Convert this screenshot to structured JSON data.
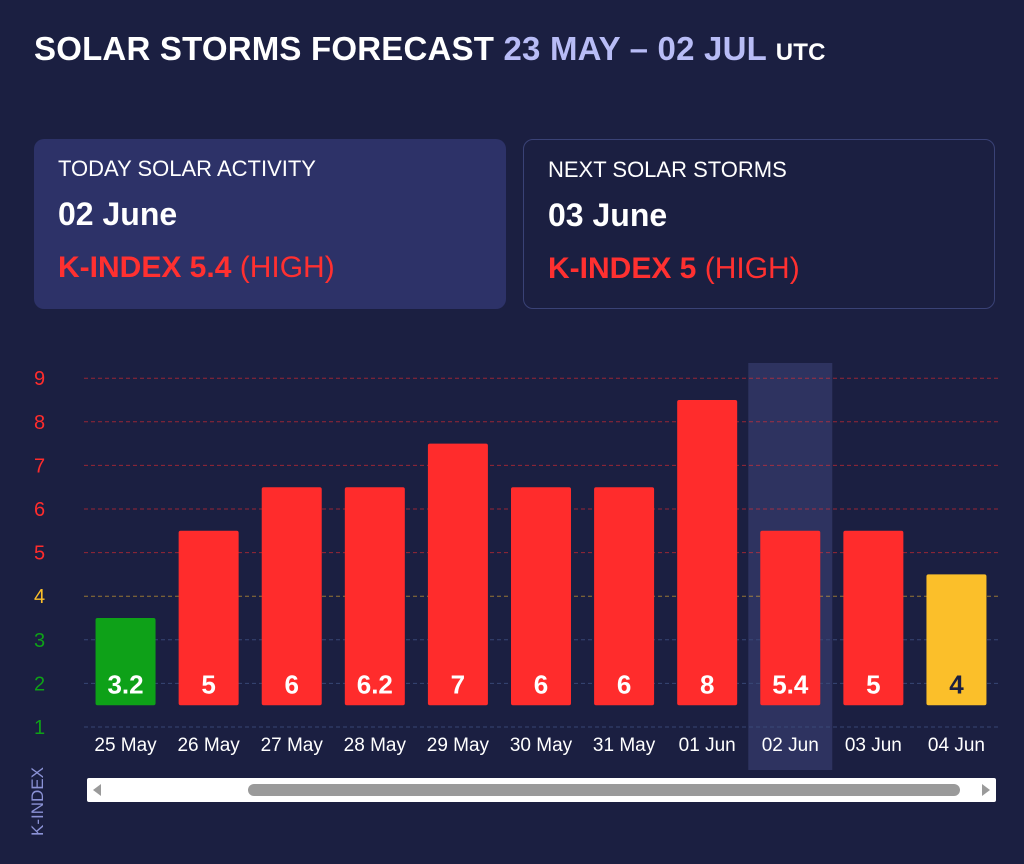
{
  "header": {
    "title": "SOLAR STORMS FORECAST",
    "range": "23 MAY – 02 JUL",
    "tz": "UTC"
  },
  "today": {
    "label": "TODAY SOLAR ACTIVITY",
    "date": "02 June",
    "kindex": "K-INDEX 5.4",
    "level": "(HIGH)"
  },
  "next": {
    "label": "NEXT SOLAR STORMS",
    "date": "03 June",
    "kindex": "K-INDEX 5",
    "level": "(HIGH)"
  },
  "colors": {
    "background": "#1b1f41",
    "high": "#ff2c2c",
    "moderate": "#fbbf2a",
    "low": "#0ea118",
    "range_text": "#b8bcf6"
  },
  "chart_data": {
    "type": "bar",
    "categories": [
      "25 May",
      "26 May",
      "27 May",
      "28 May",
      "29 May",
      "30 May",
      "31 May",
      "01 Jun",
      "02 Jun",
      "03 Jun",
      "04 Jun"
    ],
    "values": [
      3.2,
      5,
      6,
      6.2,
      7,
      6,
      6,
      8,
      5.4,
      5,
      4
    ],
    "value_labels": [
      "3.2",
      "5",
      "6",
      "6.2",
      "7",
      "6",
      "6",
      "8",
      "5.4",
      "5",
      "4"
    ],
    "bar_level": [
      3.5,
      5.5,
      6.5,
      6.5,
      7.5,
      6.5,
      6.5,
      8.5,
      5.5,
      5.5,
      4.5
    ],
    "levels": [
      "low",
      "high",
      "high",
      "high",
      "high",
      "high",
      "high",
      "high",
      "high",
      "high",
      "moderate"
    ],
    "highlighted_category": "02 Jun",
    "ylabel": "K-INDEX",
    "yticks": [
      1,
      2,
      3,
      4,
      5,
      6,
      7,
      8,
      9
    ],
    "ylim": [
      1,
      9
    ],
    "grid": true
  },
  "scrollbar": {
    "left_arrow": "scroll-left",
    "right_arrow": "scroll-right"
  }
}
